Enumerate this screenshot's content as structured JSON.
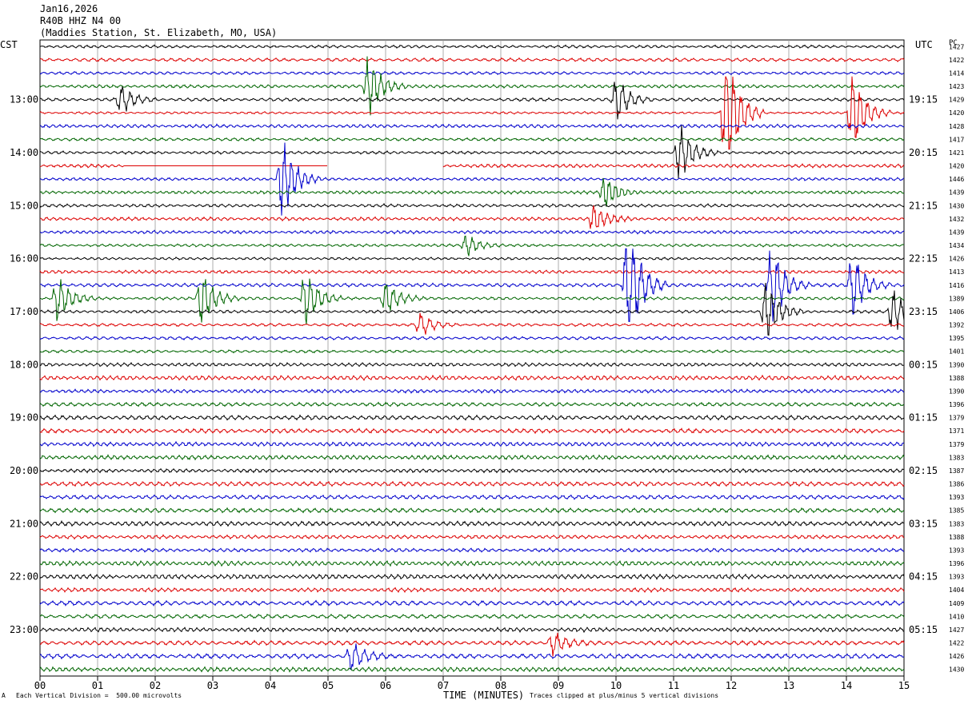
{
  "header": {
    "date": "Jan16,2026",
    "station": "R40B HHZ N4 00",
    "location": "(Maddies Station, St. Elizabeth, MO, USA)"
  },
  "chart_data": {
    "type": "line",
    "title": "",
    "xlabel": "TIME (MINUTES)",
    "left_axis_label": "CST",
    "right_axis_label": "UTC",
    "right_col_label": "PC",
    "xlim": [
      0,
      15
    ],
    "x_ticks": [
      "00",
      "01",
      "02",
      "03",
      "04",
      "05",
      "06",
      "07",
      "08",
      "09",
      "10",
      "11",
      "12",
      "13",
      "14",
      "15"
    ],
    "grid": true,
    "trace_colors": [
      "#000000",
      "#dd0000",
      "#0000cc",
      "#006600"
    ],
    "left_ticks": [
      {
        "trace": 4,
        "label": "13:00"
      },
      {
        "trace": 8,
        "label": "14:00"
      },
      {
        "trace": 12,
        "label": "15:00"
      },
      {
        "trace": 16,
        "label": "16:00"
      },
      {
        "trace": 20,
        "label": "17:00"
      },
      {
        "trace": 24,
        "label": "18:00"
      },
      {
        "trace": 28,
        "label": "19:00"
      },
      {
        "trace": 32,
        "label": "20:00"
      },
      {
        "trace": 36,
        "label": "21:00"
      },
      {
        "trace": 40,
        "label": "22:00"
      },
      {
        "trace": 44,
        "label": "23:00"
      }
    ],
    "right_ticks": [
      {
        "trace": 4,
        "label": "19:15"
      },
      {
        "trace": 8,
        "label": "20:15"
      },
      {
        "trace": 12,
        "label": "21:15"
      },
      {
        "trace": 16,
        "label": "22:15"
      },
      {
        "trace": 20,
        "label": "23:15"
      },
      {
        "trace": 24,
        "label": "00:15"
      },
      {
        "trace": 28,
        "label": "01:15"
      },
      {
        "trace": 32,
        "label": "02:15"
      },
      {
        "trace": 36,
        "label": "03:15"
      },
      {
        "trace": 40,
        "label": "04:15"
      },
      {
        "trace": 44,
        "label": "05:15"
      }
    ],
    "trace_counts": [
      "1427",
      "1422",
      "1414",
      "1423",
      "1429",
      "1420",
      "1428",
      "1417",
      "1421",
      "1420",
      "1446",
      "1439",
      "1430",
      "1432",
      "1439",
      "1434",
      "1426",
      "1413",
      "1416",
      "1389",
      "1406",
      "1392",
      "1395",
      "1401",
      "1390",
      "1388",
      "1390",
      "1396",
      "1379",
      "1371",
      "1379",
      "1383",
      "1387",
      "1386",
      "1393",
      "1385",
      "1383",
      "1388",
      "1393",
      "1396",
      "1393",
      "1404",
      "1409",
      "1410",
      "1427",
      "1422",
      "1426",
      "1430"
    ],
    "events": [
      {
        "trace": 3,
        "minute": 5.7,
        "amplitude": 2.2
      },
      {
        "trace": 4,
        "minute": 1.4,
        "amplitude": 1.0
      },
      {
        "trace": 4,
        "minute": 10.0,
        "amplitude": 1.6
      },
      {
        "trace": 5,
        "minute": 11.9,
        "amplitude": 5.0
      },
      {
        "trace": 5,
        "minute": 14.1,
        "amplitude": 3.0
      },
      {
        "trace": 8,
        "minute": 11.1,
        "amplitude": 2.0
      },
      {
        "trace": 10,
        "minute": 4.2,
        "amplitude": 3.0
      },
      {
        "trace": 11,
        "minute": 9.8,
        "amplitude": 1.2
      },
      {
        "trace": 13,
        "minute": 9.6,
        "amplitude": 1.0
      },
      {
        "trace": 15,
        "minute": 7.4,
        "amplitude": 0.8
      },
      {
        "trace": 18,
        "minute": 10.2,
        "amplitude": 5.0
      },
      {
        "trace": 18,
        "minute": 12.7,
        "amplitude": 3.0
      },
      {
        "trace": 18,
        "minute": 14.1,
        "amplitude": 2.4
      },
      {
        "trace": 19,
        "minute": 0.3,
        "amplitude": 1.6
      },
      {
        "trace": 19,
        "minute": 2.8,
        "amplitude": 2.0
      },
      {
        "trace": 19,
        "minute": 4.6,
        "amplitude": 2.0
      },
      {
        "trace": 19,
        "minute": 6.0,
        "amplitude": 1.2
      },
      {
        "trace": 20,
        "minute": 12.6,
        "amplitude": 2.2
      },
      {
        "trace": 20,
        "minute": 14.8,
        "amplitude": 1.6
      },
      {
        "trace": 21,
        "minute": 6.6,
        "amplitude": 0.8
      },
      {
        "trace": 45,
        "minute": 8.9,
        "amplitude": 0.8
      },
      {
        "trace": 46,
        "minute": 5.4,
        "amplitude": 1.0
      }
    ],
    "gaps": [
      {
        "trace": 9,
        "start": 1.45,
        "end": 5.0,
        "type": "flat"
      },
      {
        "trace": 9,
        "start": 5.0,
        "end": 7.0,
        "type": "blank"
      }
    ]
  },
  "footer": {
    "scale": "Each Vertical Division =  500.00 microvolts",
    "clip": "Traces clipped at plus/minus 5 vertical divisions",
    "marker": "A"
  }
}
